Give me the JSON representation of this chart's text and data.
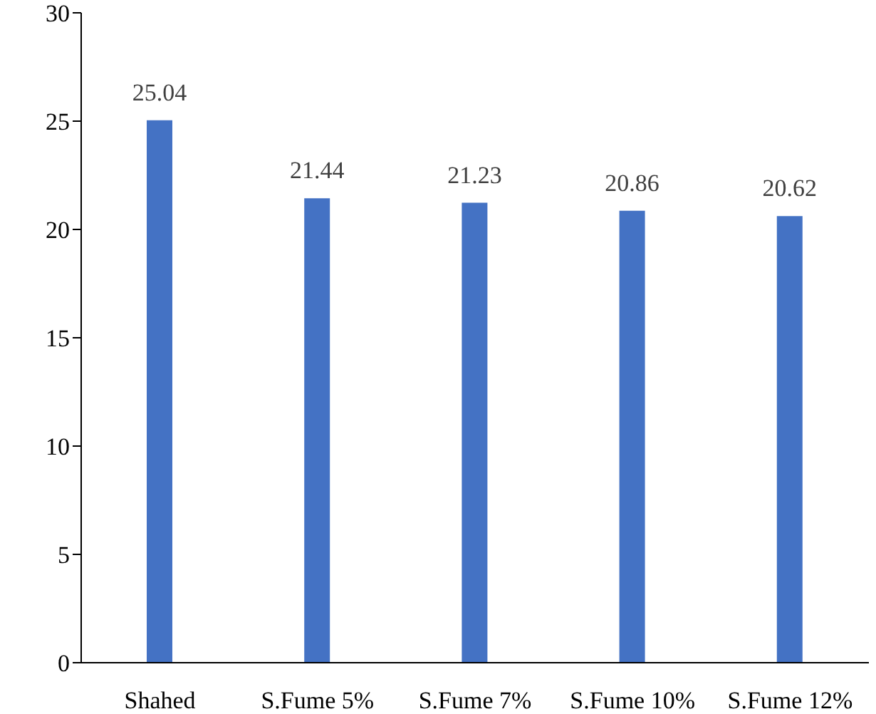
{
  "chart_data": {
    "type": "bar",
    "categories": [
      "Shahed",
      "S.Fume 5%",
      "S.Fume 7%",
      "S.Fume 10%",
      "S.Fume 12%"
    ],
    "values": [
      25.04,
      21.44,
      21.23,
      20.86,
      20.62
    ],
    "color": "#4472c4",
    "ylim": [
      0,
      30
    ],
    "yticks": [
      0,
      5,
      10,
      15,
      20,
      25,
      30
    ],
    "data_labels": true
  }
}
